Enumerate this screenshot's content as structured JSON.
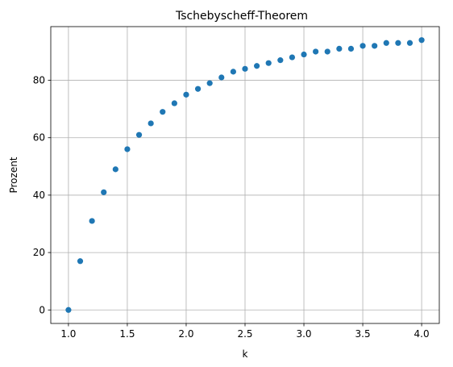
{
  "chart_data": {
    "type": "scatter",
    "title": "Tschebyscheff-Theorem",
    "xlabel": "k",
    "ylabel": "Prozent",
    "xlim": [
      0.85,
      4.15
    ],
    "ylim": [
      -4.7,
      98.7
    ],
    "x_ticks": [
      1.0,
      1.5,
      2.0,
      2.5,
      3.0,
      3.5,
      4.0
    ],
    "x_tick_labels": [
      "1.0",
      "1.5",
      "2.0",
      "2.5",
      "3.0",
      "3.5",
      "4.0"
    ],
    "y_ticks": [
      0,
      20,
      40,
      60,
      80
    ],
    "y_tick_labels": [
      "0",
      "20",
      "40",
      "60",
      "80"
    ],
    "grid": true,
    "point_color": "#1f77b4",
    "grid_color": "#b0b0b0",
    "x": [
      1.0,
      1.1,
      1.2,
      1.3,
      1.4,
      1.5,
      1.6,
      1.7,
      1.8,
      1.9,
      2.0,
      2.1,
      2.2,
      2.3,
      2.4,
      2.5,
      2.6,
      2.7,
      2.8,
      2.9,
      3.0,
      3.1,
      3.2,
      3.3,
      3.4,
      3.5,
      3.6,
      3.7,
      3.8,
      3.9,
      4.0
    ],
    "y": [
      0,
      17,
      31,
      41,
      49,
      56,
      61,
      65,
      69,
      72,
      75,
      77,
      79,
      81,
      83,
      84,
      85,
      86,
      87,
      88,
      89,
      90,
      90,
      91,
      91,
      92,
      92,
      93,
      93,
      93,
      94
    ]
  }
}
